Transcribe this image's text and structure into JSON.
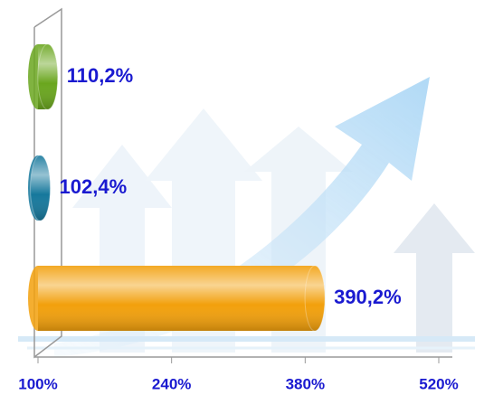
{
  "chart_data": {
    "type": "bar",
    "orientation": "horizontal",
    "categories": [
      null,
      null,
      null
    ],
    "values": [
      110.2,
      102.4,
      390.2
    ],
    "value_labels": [
      "110,2%",
      "102,4%",
      "390,2%"
    ],
    "colors": [
      "#6aa61e",
      "#16789c",
      "#f2a00c"
    ],
    "xlim": [
      100,
      520
    ],
    "xticks": [
      {
        "value": 100,
        "label": "100%"
      },
      {
        "value": 240,
        "label": "240%"
      },
      {
        "value": 380,
        "label": "380%"
      },
      {
        "value": 520,
        "label": "520%"
      }
    ],
    "grid": false
  }
}
